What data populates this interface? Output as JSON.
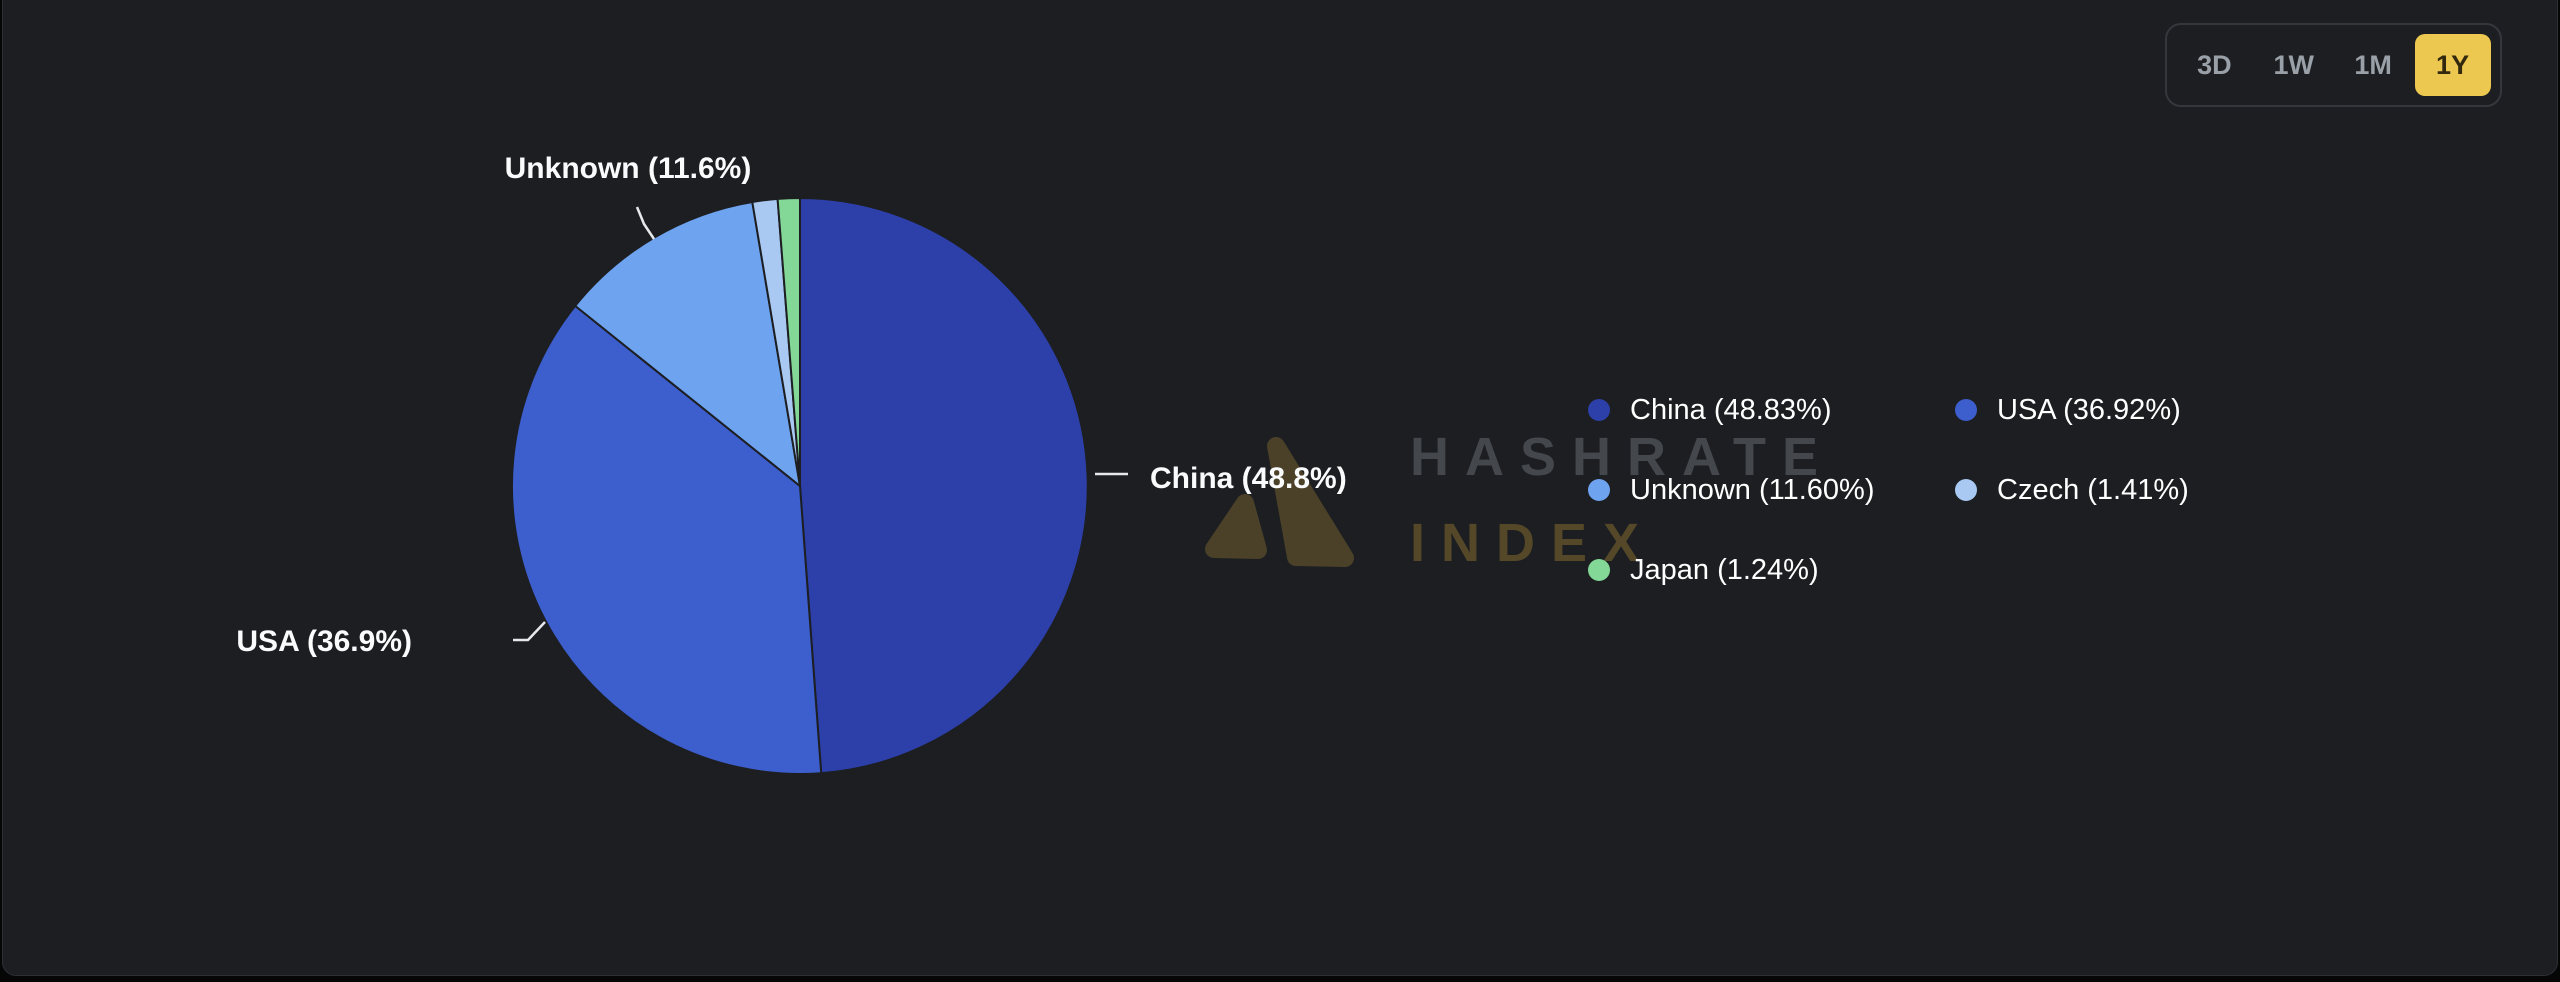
{
  "time_range": {
    "options": [
      "3D",
      "1W",
      "1M",
      "1Y"
    ],
    "active_label": "1Y",
    "active_color": "#ecc850"
  },
  "watermark": {
    "line1": "HASHRATE",
    "line2": "INDEX"
  },
  "chart_data": {
    "type": "pie",
    "unit": "%",
    "start_angle": "top",
    "direction": "clockwise",
    "legend_position": "right",
    "legend_columns": 2,
    "background_color": "#1c1e21",
    "slices": [
      {
        "label": "China",
        "value": 48.83,
        "color": "#2d40aa",
        "legend_text": "China (48.83%)",
        "callout_text": "China (48.8%)"
      },
      {
        "label": "USA",
        "value": 36.92,
        "color": "#3d5ecd",
        "legend_text": "USA (36.92%)",
        "callout_text": "USA (36.9%)"
      },
      {
        "label": "Unknown",
        "value": 11.6,
        "color": "#6ea3f0",
        "legend_text": "Unknown (11.60%)",
        "callout_text": "Unknown (11.6%)"
      },
      {
        "label": "Czech",
        "value": 1.41,
        "color": "#a9c9f2",
        "legend_text": "Czech (1.41%)",
        "callout_text": ""
      },
      {
        "label": "Japan",
        "value": 1.24,
        "color": "#83d897",
        "legend_text": "Japan (1.24%)",
        "callout_text": ""
      }
    ]
  }
}
